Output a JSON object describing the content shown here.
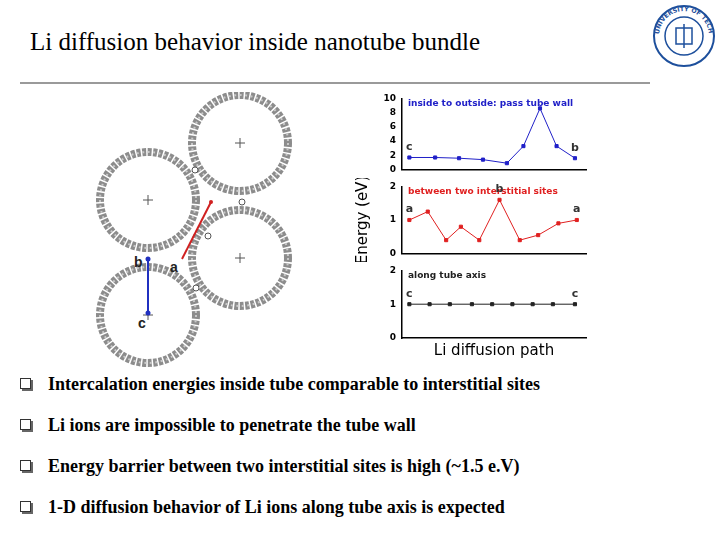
{
  "title": "Li diffusion behavior inside nanotube bundle",
  "logo_text": "DALIAN UNIVERSITY OF TECHNOLOGY",
  "site_labels": [
    "a",
    "b",
    "c"
  ],
  "bullets": [
    "Intercalation energies inside tube comparable to interstitial sites",
    "Li ions are impossible to penetrate the tube wall",
    "Energy barrier between two interstitial sites is high (~1.5 e.V)",
    "1-D diffusion behavior of Li ions along tube axis is expected"
  ],
  "chart_data": [
    {
      "type": "line",
      "title": "inside to outside: pass tube wall",
      "x": [
        0.4,
        1.8,
        3.1,
        4.4,
        5.7,
        6.6,
        7.5,
        8.4,
        9.4
      ],
      "values": [
        1.7,
        1.7,
        1.6,
        1.4,
        0.9,
        3.3,
        8.6,
        3.3,
        1.6
      ],
      "point_labels": [
        "c",
        null,
        null,
        null,
        null,
        null,
        null,
        null,
        "b"
      ],
      "color": "#2020c8",
      "marker": "square",
      "line_style": "solid",
      "xlim": [
        0,
        10
      ],
      "ylim": [
        0,
        10
      ],
      "yticks": [
        0,
        2,
        4,
        6,
        8,
        10
      ],
      "tick_labels": "y",
      "grid": false
    },
    {
      "type": "line",
      "title": "between two interstitial sites",
      "ylabel": "Energy (eV)",
      "x": [
        0.4,
        1.4,
        2.4,
        3.2,
        4.2,
        5.3,
        6.4,
        7.4,
        8.5,
        9.5
      ],
      "values": [
        1.0,
        1.25,
        0.4,
        0.8,
        0.4,
        1.6,
        0.4,
        0.55,
        0.9,
        1.0
      ],
      "point_labels": [
        "a",
        null,
        null,
        null,
        null,
        "b",
        null,
        null,
        null,
        "a"
      ],
      "color": "#e02020",
      "marker": "square",
      "line_style": "solid",
      "xlim": [
        0,
        10
      ],
      "ylim": [
        0,
        2
      ],
      "yticks": [
        0,
        1,
        2
      ],
      "tick_labels": "y",
      "grid": false
    },
    {
      "type": "line",
      "title": "along tube axis",
      "xlabel": "Li diffusion path",
      "x": [
        0.4,
        1.5,
        2.6,
        3.8,
        4.9,
        6.0,
        7.1,
        8.2,
        9.4
      ],
      "values": [
        1.0,
        1.0,
        1.0,
        1.0,
        1.0,
        1.0,
        1.0,
        1.0,
        1.0
      ],
      "point_labels": [
        "c",
        null,
        null,
        null,
        null,
        null,
        null,
        null,
        "c"
      ],
      "color": "#222222",
      "marker": "square",
      "line_style": "solid",
      "xlim": [
        0,
        10
      ],
      "ylim": [
        0,
        2
      ],
      "yticks": [
        0,
        1,
        2
      ],
      "tick_labels": "y",
      "grid": false
    }
  ]
}
